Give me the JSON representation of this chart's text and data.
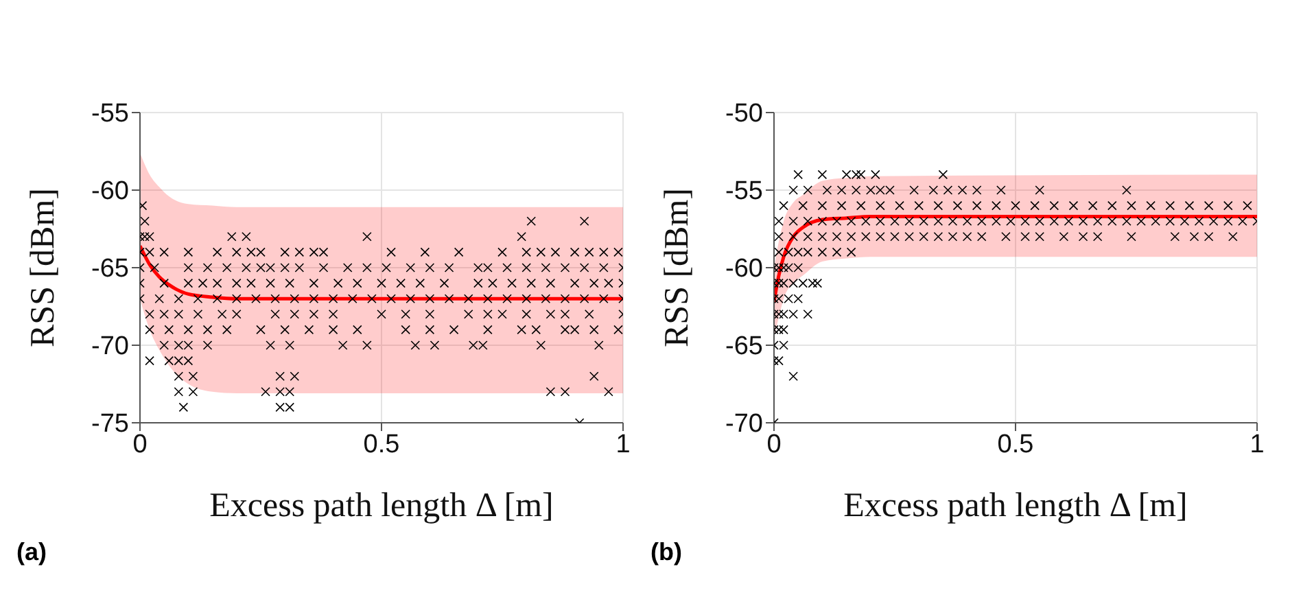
{
  "chart_data": [
    {
      "type": "scatter",
      "xlabel": "Excess path length Δ [m]",
      "ylabel": "RSS [dBm]",
      "xlim": [
        0,
        1
      ],
      "xticks": [
        0,
        0.5,
        1
      ],
      "ylim": [
        -75,
        -55
      ],
      "yticks": [
        -75,
        -70,
        -65,
        -60,
        -55
      ],
      "grid": true,
      "annotations": [
        "(a)"
      ],
      "series": [
        {
          "marker": "cross",
          "color": "#000000",
          "x": [
            0.005,
            0.01,
            0.81,
            0.92,
            0,
            0.01,
            0.02,
            0.19,
            0.22,
            0.47,
            0.79,
            0,
            0.02,
            0.05,
            0.1,
            0.16,
            0.2,
            0.23,
            0.25,
            0.3,
            0.33,
            0.36,
            0.38,
            0.52,
            0.59,
            0.66,
            0.75,
            0.8,
            0.83,
            0.86,
            0.9,
            0.93,
            0.96,
            0.99,
            0,
            0.03,
            0.1,
            0.14,
            0.18,
            0.22,
            0.25,
            0.27,
            0.3,
            0.33,
            0.38,
            0.43,
            0.47,
            0.51,
            0.56,
            0.6,
            0.64,
            0.7,
            0.72,
            0.76,
            0.8,
            0.84,
            0.88,
            0.92,
            0.96,
            1.0,
            0,
            0.05,
            0.1,
            0.13,
            0.16,
            0.2,
            0.23,
            0.27,
            0.31,
            0.36,
            0.41,
            0.45,
            0.5,
            0.54,
            0.58,
            0.63,
            0.7,
            0.73,
            0.77,
            0.81,
            0.85,
            0.9,
            0.94,
            0.97,
            1.0,
            0,
            0.04,
            0.08,
            0.12,
            0.16,
            0.2,
            0.24,
            0.28,
            0.32,
            0.36,
            0.4,
            0.44,
            0.48,
            0.52,
            0.56,
            0.6,
            0.64,
            0.68,
            0.72,
            0.76,
            0.8,
            0.84,
            0.88,
            0.92,
            0.96,
            1.0,
            0.02,
            0.05,
            0.08,
            0.12,
            0.17,
            0.2,
            0.28,
            0.32,
            0.36,
            0.4,
            0.5,
            0.55,
            0.6,
            0.68,
            0.72,
            0.75,
            0.8,
            0.85,
            0.88,
            0.93,
            1.0,
            0.02,
            0.06,
            0.1,
            0.14,
            0.18,
            0.25,
            0.3,
            0.35,
            0.4,
            0.45,
            0.55,
            0.6,
            0.65,
            0.72,
            0.79,
            0.82,
            0.88,
            0.9,
            0.94,
            0.99,
            0.05,
            0.08,
            0.1,
            0.14,
            0.27,
            0.31,
            0.42,
            0.47,
            0.57,
            0.61,
            0.69,
            0.71,
            0.83,
            0.95,
            0.02,
            0.06,
            0.08,
            0.1,
            0.08,
            0.11,
            0.29,
            0.32,
            0.94,
            0.08,
            0.11,
            0.26,
            0.29,
            0.31,
            0.85,
            0.88,
            0.97,
            0.09,
            0.29,
            0.31,
            0.91
          ],
          "values": [
            -61,
            -62,
            -62,
            -62,
            -63,
            -63,
            -63,
            -63,
            -63,
            -63,
            -63,
            -64,
            -64,
            -64,
            -64,
            -64,
            -64,
            -64,
            -64,
            -64,
            -64,
            -64,
            -64,
            -64,
            -64,
            -64,
            -64,
            -64,
            -64,
            -64,
            -64,
            -64,
            -64,
            -64,
            -65,
            -65,
            -65,
            -65,
            -65,
            -65,
            -65,
            -65,
            -65,
            -65,
            -65,
            -65,
            -65,
            -65,
            -65,
            -65,
            -65,
            -65,
            -65,
            -65,
            -65,
            -65,
            -65,
            -65,
            -65,
            -65,
            -66,
            -66,
            -66,
            -66,
            -66,
            -66,
            -66,
            -66,
            -66,
            -66,
            -66,
            -66,
            -66,
            -66,
            -66,
            -66,
            -66,
            -66,
            -66,
            -66,
            -66,
            -66,
            -66,
            -66,
            -66,
            -67,
            -67,
            -67,
            -67,
            -67,
            -67,
            -67,
            -67,
            -67,
            -67,
            -67,
            -67,
            -67,
            -67,
            -67,
            -67,
            -67,
            -67,
            -67,
            -67,
            -67,
            -67,
            -67,
            -67,
            -67,
            -67,
            -68,
            -68,
            -68,
            -68,
            -68,
            -68,
            -68,
            -68,
            -68,
            -68,
            -68,
            -68,
            -68,
            -68,
            -68,
            -68,
            -68,
            -68,
            -68,
            -68,
            -68,
            -69,
            -69,
            -69,
            -69,
            -69,
            -69,
            -69,
            -69,
            -69,
            -69,
            -69,
            -69,
            -69,
            -69,
            -69,
            -69,
            -69,
            -69,
            -69,
            -69,
            -70,
            -70,
            -70,
            -70,
            -70,
            -70,
            -70,
            -70,
            -70,
            -70,
            -70,
            -70,
            -70,
            -70,
            -71,
            -71,
            -71,
            -71,
            -72,
            -72,
            -72,
            -72,
            -72,
            -73,
            -73,
            -73,
            -73,
            -73,
            -73,
            -73,
            -73,
            -74,
            -74,
            -74,
            -75
          ]
        },
        {
          "type": "line",
          "color": "#ff0000",
          "x": [
            0,
            0.02,
            0.04,
            0.06,
            0.1,
            0.15,
            0.2,
            1
          ],
          "values": [
            -63.6,
            -64.8,
            -65.6,
            -66.1,
            -66.7,
            -66.9,
            -67,
            -67
          ],
          "lower": [
            -67,
            -69,
            -70.3,
            -71.3,
            -72.5,
            -73,
            -73.1,
            -73.1
          ],
          "upper": [
            -57.6,
            -59,
            -59.8,
            -60.4,
            -60.9,
            -61,
            -61.1,
            -61.1
          ]
        }
      ]
    },
    {
      "type": "scatter",
      "xlabel": "Excess path length Δ [m]",
      "ylabel": "RSS [dBm]",
      "xlim": [
        0,
        1
      ],
      "xticks": [
        0,
        0.5,
        1
      ],
      "ylim": [
        -70,
        -50
      ],
      "yticks": [
        -70,
        -65,
        -60,
        -55,
        -50
      ],
      "grid": true,
      "annotations": [
        "(b)"
      ],
      "series": [
        {
          "marker": "cross",
          "color": "#000000",
          "x": [
            0.05,
            0.1,
            0.15,
            0.17,
            0.18,
            0.21,
            0.35,
            0.04,
            0.07,
            0.11,
            0.14,
            0.17,
            0.2,
            0.22,
            0.24,
            0.29,
            0.33,
            0.36,
            0.39,
            0.42,
            0.47,
            0.55,
            0.73,
            0.02,
            0.06,
            0.1,
            0.14,
            0.18,
            0.22,
            0.26,
            0.3,
            0.34,
            0.38,
            0.42,
            0.46,
            0.5,
            0.54,
            0.58,
            0.62,
            0.66,
            0.7,
            0.74,
            0.78,
            0.82,
            0.86,
            0.9,
            0.94,
            0.98,
            0.01,
            0.04,
            0.07,
            0.1,
            0.13,
            0.16,
            0.19,
            0.22,
            0.25,
            0.28,
            0.31,
            0.34,
            0.37,
            0.4,
            0.43,
            0.46,
            0.49,
            0.52,
            0.55,
            0.58,
            0.61,
            0.64,
            0.67,
            0.7,
            0.73,
            0.76,
            0.79,
            0.82,
            0.85,
            0.88,
            0.91,
            0.94,
            0.97,
            1.0,
            0.01,
            0.04,
            0.07,
            0.1,
            0.13,
            0.16,
            0.19,
            0.22,
            0.25,
            0.28,
            0.31,
            0.34,
            0.37,
            0.4,
            0.43,
            0.48,
            0.52,
            0.55,
            0.6,
            0.64,
            0.67,
            0.74,
            0.83,
            0.87,
            0.9,
            0.95,
            0.01,
            0.03,
            0.05,
            0.07,
            0.1,
            0.13,
            0.16,
            0,
            0.01,
            0.02,
            0.03,
            0.05,
            0,
            0.01,
            0.02,
            0.04,
            0.06,
            0.08,
            0.09,
            0,
            0.01,
            0.03,
            0.05,
            0,
            0.01,
            0.02,
            0.04,
            0.07,
            0,
            0.01,
            0.02,
            0,
            0.02,
            0,
            0.01,
            0.04,
            0
          ],
          "values": [
            -54,
            -54,
            -54,
            -54,
            -54,
            -54,
            -54,
            -55,
            -55,
            -55,
            -55,
            -55,
            -55,
            -55,
            -55,
            -55,
            -55,
            -55,
            -55,
            -55,
            -55,
            -55,
            -55,
            -56,
            -56,
            -56,
            -56,
            -56,
            -56,
            -56,
            -56,
            -56,
            -56,
            -56,
            -56,
            -56,
            -56,
            -56,
            -56,
            -56,
            -56,
            -56,
            -56,
            -56,
            -56,
            -56,
            -56,
            -56,
            -57,
            -57,
            -57,
            -57,
            -57,
            -57,
            -57,
            -57,
            -57,
            -57,
            -57,
            -57,
            -57,
            -57,
            -57,
            -57,
            -57,
            -57,
            -57,
            -57,
            -57,
            -57,
            -57,
            -57,
            -57,
            -57,
            -57,
            -57,
            -57,
            -57,
            -57,
            -57,
            -57,
            -57,
            -58,
            -58,
            -58,
            -58,
            -58,
            -58,
            -58,
            -58,
            -58,
            -58,
            -58,
            -58,
            -58,
            -58,
            -58,
            -58,
            -58,
            -58,
            -58,
            -58,
            -58,
            -58,
            -58,
            -58,
            -58,
            -58,
            -59,
            -59,
            -59,
            -59,
            -59,
            -59,
            -59,
            -60,
            -60,
            -60,
            -60,
            -60,
            -61,
            -61,
            -61,
            -61,
            -61,
            -61,
            -61,
            -62,
            -62,
            -62,
            -62,
            -63,
            -63,
            -63,
            -63,
            -63,
            -64,
            -64,
            -64,
            -65,
            -65,
            -66,
            -66,
            -67,
            -70
          ]
        },
        {
          "type": "line",
          "color": "#ff0000",
          "x": [
            0,
            0.01,
            0.02,
            0.04,
            0.06,
            0.1,
            0.15,
            0.2,
            1
          ],
          "values": [
            -62.2,
            -60.5,
            -59.3,
            -58,
            -57.4,
            -56.9,
            -56.8,
            -56.7,
            -56.7
          ],
          "lower": [
            -64.5,
            -63.2,
            -62,
            -61,
            -60.5,
            -59.6,
            -59.4,
            -59.3,
            -59.3
          ],
          "upper": [
            -60,
            -58.3,
            -57,
            -55.8,
            -55.3,
            -54.4,
            -54.2,
            -54.1,
            -54
          ]
        }
      ]
    }
  ]
}
